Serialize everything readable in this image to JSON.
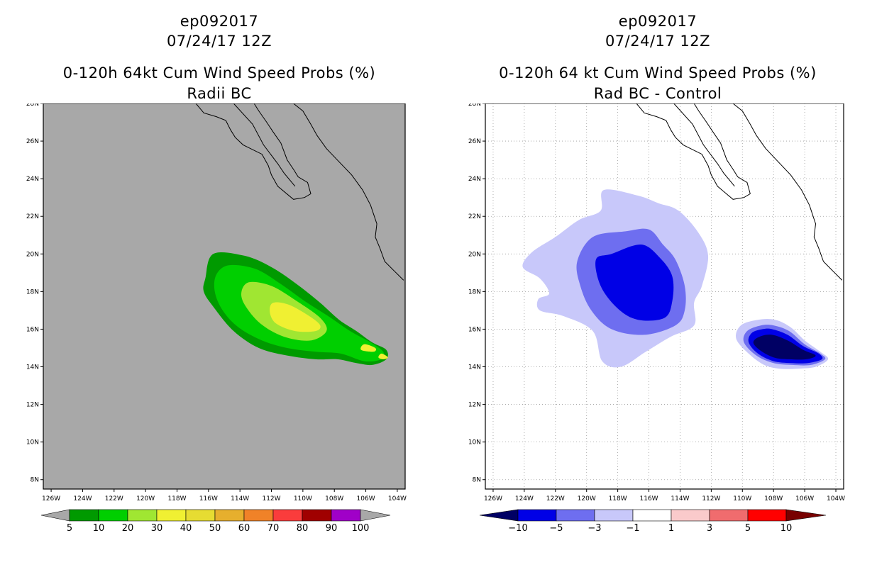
{
  "chart_data": [
    {
      "type": "heatmap",
      "id": "ep092017",
      "title_lines": [
        "ep092017",
        "07/24/17 12Z",
        "0-120h 64kt Cum Wind Speed Probs (%)",
        "Radii BC"
      ],
      "background_color": "#a8a8a8",
      "xlim": [
        -126.5,
        -103.5
      ],
      "ylim": [
        7.5,
        28
      ],
      "x_ticks": [
        -126,
        -124,
        -122,
        -120,
        -118,
        -116,
        -114,
        -112,
        -110,
        -108,
        -106,
        -104
      ],
      "x_tick_labels": [
        "126W",
        "124W",
        "122W",
        "120W",
        "118W",
        "116W",
        "114W",
        "112W",
        "110W",
        "108W",
        "106W",
        "104W"
      ],
      "y_ticks": [
        8,
        10,
        12,
        14,
        16,
        18,
        20,
        22,
        24,
        26,
        28
      ],
      "y_tick_labels": [
        "8N",
        "10N",
        "12N",
        "14N",
        "16N",
        "18N",
        "20N",
        "22N",
        "24N",
        "26N",
        "28N"
      ],
      "grid": false,
      "colorbar": {
        "labels": [
          "5",
          "10",
          "20",
          "30",
          "40",
          "50",
          "60",
          "70",
          "80",
          "90",
          "100"
        ],
        "colors": [
          "#009a00",
          "#00cf00",
          "#a0e632",
          "#f0f032",
          "#e6dc32",
          "#e6af2d",
          "#f08228",
          "#fa3c3c",
          "#a00000",
          "#a000c8"
        ],
        "triangle_color": "#a8a8a8"
      },
      "contours": [
        {
          "level": 5,
          "color": "#009a00",
          "points": [
            [
              -115.7,
              20.0
            ],
            [
              -113.7,
              19.9
            ],
            [
              -112.0,
              19.3
            ],
            [
              -110.4,
              18.4
            ],
            [
              -108.9,
              17.4
            ],
            [
              -107.7,
              16.5
            ],
            [
              -106.6,
              15.9
            ],
            [
              -105.6,
              15.3
            ],
            [
              -104.7,
              14.9
            ],
            [
              -104.7,
              14.4
            ],
            [
              -105.6,
              14.1
            ],
            [
              -106.6,
              14.2
            ],
            [
              -107.8,
              14.4
            ],
            [
              -109.2,
              14.4
            ],
            [
              -111.0,
              14.6
            ],
            [
              -112.8,
              15.0
            ],
            [
              -114.4,
              15.9
            ],
            [
              -115.7,
              17.2
            ],
            [
              -116.3,
              18.0
            ],
            [
              -116.2,
              18.7
            ]
          ]
        },
        {
          "level": 10,
          "color": "#00cf00",
          "points": [
            [
              -114.7,
              19.4
            ],
            [
              -113.0,
              19.2
            ],
            [
              -111.4,
              18.4
            ],
            [
              -109.9,
              17.5
            ],
            [
              -108.4,
              16.7
            ],
            [
              -107.0,
              15.9
            ],
            [
              -105.7,
              15.3
            ],
            [
              -104.9,
              14.8
            ],
            [
              -105.0,
              14.4
            ],
            [
              -106.1,
              14.3
            ],
            [
              -107.6,
              14.7
            ],
            [
              -109.2,
              14.8
            ],
            [
              -111.0,
              15.0
            ],
            [
              -112.6,
              15.4
            ],
            [
              -114.1,
              16.1
            ],
            [
              -115.1,
              17.0
            ],
            [
              -115.6,
              18.0
            ],
            [
              -115.5,
              18.9
            ]
          ]
        },
        {
          "level": 20,
          "color": "#a0e632",
          "points": [
            [
              -113.4,
              18.5
            ],
            [
              -112.0,
              18.3
            ],
            [
              -110.4,
              17.5
            ],
            [
              -108.9,
              16.6
            ],
            [
              -108.5,
              15.9
            ],
            [
              -109.5,
              15.4
            ],
            [
              -111.2,
              15.6
            ],
            [
              -112.7,
              16.3
            ],
            [
              -113.7,
              17.3
            ],
            [
              -113.9,
              18.0
            ]
          ]
        },
        {
          "level": 30,
          "color": "#f0f032",
          "points": [
            [
              -111.9,
              17.4
            ],
            [
              -110.9,
              17.3
            ],
            [
              -109.6,
              16.7
            ],
            [
              -108.9,
              16.2
            ],
            [
              -109.2,
              15.9
            ],
            [
              -110.5,
              15.9
            ],
            [
              -111.7,
              16.3
            ],
            [
              -112.1,
              16.9
            ]
          ]
        },
        {
          "level": 30,
          "color": "#f0f032",
          "points": [
            [
              -106.1,
              15.2
            ],
            [
              -105.4,
              15.0
            ],
            [
              -105.5,
              14.8
            ],
            [
              -106.3,
              14.9
            ]
          ]
        },
        {
          "level": 30,
          "color": "#f0f032",
          "points": [
            [
              -105.0,
              14.7
            ],
            [
              -104.6,
              14.5
            ],
            [
              -104.9,
              14.4
            ],
            [
              -105.2,
              14.5
            ]
          ]
        }
      ]
    },
    {
      "type": "heatmap",
      "id": "ep092017",
      "title_lines": [
        "ep092017",
        "07/24/17 12Z",
        "0-120h 64 kt Cum Wind Speed Probs (%)",
        "Rad BC - Control"
      ],
      "background_color": "#ffffff",
      "xlim": [
        -126.5,
        -103.5
      ],
      "ylim": [
        7.5,
        28
      ],
      "x_ticks": [
        -126,
        -124,
        -122,
        -120,
        -118,
        -116,
        -114,
        -112,
        -110,
        -108,
        -106,
        -104
      ],
      "x_tick_labels": [
        "126W",
        "124W",
        "122W",
        "120W",
        "118W",
        "116W",
        "114W",
        "112W",
        "110W",
        "108W",
        "106W",
        "104W"
      ],
      "y_ticks": [
        8,
        10,
        12,
        14,
        16,
        18,
        20,
        22,
        24,
        26,
        28
      ],
      "y_tick_labels": [
        "8N",
        "10N",
        "12N",
        "14N",
        "16N",
        "18N",
        "20N",
        "22N",
        "24N",
        "26N",
        "28N"
      ],
      "grid": true,
      "colorbar": {
        "labels": [
          "-10",
          "-5",
          "-3",
          "-1",
          "1",
          "3",
          "5",
          "10"
        ],
        "colors": [
          "#0000e6",
          "#6e6ef0",
          "#c8c8fa",
          "#ffffff",
          "#facacb",
          "#f06c6e",
          "#ff0000"
        ],
        "left_triangle_color": "#000064",
        "right_triangle_color": "#780000"
      },
      "contours": [
        {
          "level": -1,
          "color": "#c8c8fa",
          "points": [
            [
              -118.9,
              23.4
            ],
            [
              -116.7,
              23.1
            ],
            [
              -115.4,
              22.7
            ],
            [
              -114.1,
              22.3
            ],
            [
              -112.8,
              21.1
            ],
            [
              -112.2,
              19.9
            ],
            [
              -112.6,
              18.3
            ],
            [
              -113.1,
              17.4
            ],
            [
              -113.1,
              16.2
            ],
            [
              -114.6,
              15.6
            ],
            [
              -116.2,
              14.8
            ],
            [
              -117.8,
              14.0
            ],
            [
              -119.0,
              14.3
            ],
            [
              -119.6,
              15.9
            ],
            [
              -121.5,
              16.7
            ],
            [
              -123.0,
              17.0
            ],
            [
              -123.1,
              17.6
            ],
            [
              -122.4,
              17.9
            ],
            [
              -123.0,
              18.7
            ],
            [
              -124.1,
              19.3
            ],
            [
              -123.5,
              20.1
            ],
            [
              -122.0,
              20.9
            ],
            [
              -120.5,
              21.8
            ],
            [
              -119.1,
              22.3
            ]
          ]
        },
        {
          "level": -3,
          "color": "#6e6ef0",
          "points": [
            [
              -117.5,
              21.2
            ],
            [
              -116.0,
              21.3
            ],
            [
              -115.1,
              20.5
            ],
            [
              -114.3,
              19.7
            ],
            [
              -113.7,
              18.3
            ],
            [
              -113.7,
              17.0
            ],
            [
              -114.3,
              16.2
            ],
            [
              -116.3,
              15.7
            ],
            [
              -118.4,
              16.0
            ],
            [
              -119.7,
              17.0
            ],
            [
              -120.4,
              18.3
            ],
            [
              -120.6,
              19.6
            ],
            [
              -119.6,
              20.9
            ]
          ]
        },
        {
          "level": -5,
          "color": "#0000e6",
          "points": [
            [
              -118.4,
              20.0
            ],
            [
              -116.5,
              20.5
            ],
            [
              -115.3,
              19.8
            ],
            [
              -114.5,
              18.8
            ],
            [
              -114.5,
              17.5
            ],
            [
              -115.0,
              16.6
            ],
            [
              -116.7,
              16.5
            ],
            [
              -118.0,
              17.1
            ],
            [
              -119.1,
              18.3
            ],
            [
              -119.4,
              19.7
            ]
          ]
        },
        {
          "level": -1,
          "color": "#c8c8fa",
          "points": [
            [
              -107.9,
              16.5
            ],
            [
              -106.9,
              16.1
            ],
            [
              -106.0,
              15.4
            ],
            [
              -105.0,
              14.8
            ],
            [
              -104.5,
              14.4
            ],
            [
              -105.3,
              14.0
            ],
            [
              -106.4,
              13.9
            ],
            [
              -107.6,
              13.9
            ],
            [
              -108.6,
              14.1
            ],
            [
              -109.6,
              14.7
            ],
            [
              -110.4,
              15.5
            ],
            [
              -110.1,
              16.2
            ],
            [
              -109.0,
              16.5
            ]
          ]
        },
        {
          "level": -3,
          "color": "#6e6ef0",
          "points": [
            [
              -108.0,
              16.2
            ],
            [
              -107.0,
              15.9
            ],
            [
              -106.0,
              15.2
            ],
            [
              -105.0,
              14.7
            ],
            [
              -104.7,
              14.4
            ],
            [
              -105.6,
              14.1
            ],
            [
              -106.8,
              14.1
            ],
            [
              -108.0,
              14.2
            ],
            [
              -109.1,
              14.6
            ],
            [
              -109.9,
              15.3
            ],
            [
              -109.7,
              15.9
            ],
            [
              -108.8,
              16.2
            ]
          ]
        },
        {
          "level": -5,
          "color": "#0000e6",
          "points": [
            [
              -108.1,
              16.0
            ],
            [
              -107.1,
              15.7
            ],
            [
              -106.1,
              15.1
            ],
            [
              -105.1,
              14.7
            ],
            [
              -104.9,
              14.4
            ],
            [
              -105.8,
              14.2
            ],
            [
              -106.9,
              14.2
            ],
            [
              -108.0,
              14.3
            ],
            [
              -109.0,
              14.7
            ],
            [
              -109.6,
              15.3
            ],
            [
              -109.4,
              15.8
            ],
            [
              -108.7,
              16.0
            ]
          ]
        },
        {
          "level": -10,
          "color": "#000064",
          "points": [
            [
              -108.1,
              15.7
            ],
            [
              -107.1,
              15.4
            ],
            [
              -106.1,
              14.9
            ],
            [
              -105.3,
              14.6
            ],
            [
              -105.9,
              14.4
            ],
            [
              -107.0,
              14.4
            ],
            [
              -108.0,
              14.5
            ],
            [
              -108.9,
              14.9
            ],
            [
              -109.3,
              15.3
            ],
            [
              -108.9,
              15.6
            ]
          ]
        }
      ]
    }
  ],
  "coastline": [
    [
      [
        -116.8,
        28.0
      ],
      [
        -116.3,
        27.5
      ],
      [
        -115.5,
        27.3
      ],
      [
        -114.9,
        27.1
      ],
      [
        -114.6,
        26.6
      ],
      [
        -114.3,
        26.2
      ],
      [
        -113.8,
        25.8
      ],
      [
        -112.6,
        25.3
      ],
      [
        -112.2,
        24.7
      ],
      [
        -112.0,
        24.2
      ],
      [
        -111.6,
        23.6
      ],
      [
        -110.6,
        22.9
      ],
      [
        -109.9,
        23.0
      ],
      [
        -109.5,
        23.2
      ],
      [
        -109.7,
        23.8
      ],
      [
        -110.3,
        24.1
      ],
      [
        -110.6,
        24.5
      ],
      [
        -111.0,
        25.0
      ],
      [
        -111.4,
        25.9
      ],
      [
        -111.9,
        26.5
      ],
      [
        -112.3,
        27.0
      ],
      [
        -112.8,
        27.6
      ],
      [
        -113.1,
        28.0
      ]
    ],
    [
      [
        -114.4,
        28.0
      ],
      [
        -113.2,
        26.9
      ],
      [
        -112.5,
        25.8
      ],
      [
        -111.6,
        24.8
      ],
      [
        -111.2,
        24.3
      ],
      [
        -110.5,
        23.6
      ]
    ],
    [
      [
        -110.6,
        28.0
      ],
      [
        -110.0,
        27.6
      ],
      [
        -109.5,
        26.9
      ],
      [
        -109.1,
        26.3
      ],
      [
        -108.5,
        25.6
      ],
      [
        -107.7,
        24.9
      ],
      [
        -106.9,
        24.2
      ],
      [
        -106.2,
        23.4
      ],
      [
        -105.7,
        22.6
      ],
      [
        -105.3,
        21.6
      ],
      [
        -105.4,
        20.9
      ],
      [
        -105.1,
        20.3
      ],
      [
        -104.8,
        19.6
      ],
      [
        -104.2,
        19.1
      ],
      [
        -103.6,
        18.6
      ]
    ]
  ]
}
